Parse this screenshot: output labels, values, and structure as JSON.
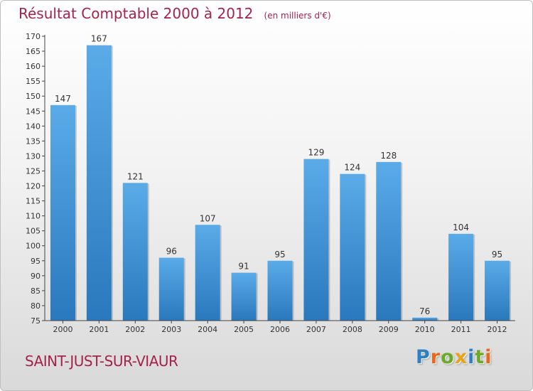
{
  "header": {
    "title": "Résultat Comptable 2000 à 2012",
    "subtitle": "(en milliers d'€)"
  },
  "footer": {
    "commune": "SAINT-JUST-SUR-VIAUR",
    "logo_text": "Proxiti",
    "logo_letters": [
      {
        "char": "P",
        "color": "#2e7fc4"
      },
      {
        "char": "r",
        "color": "#e8681b"
      },
      {
        "char": "o",
        "color": "#6aab2a"
      },
      {
        "char": "x",
        "color": "#e8a31b"
      },
      {
        "char": "i",
        "color": "#2e7fc4"
      },
      {
        "char": "t",
        "color": "#6aab2a"
      },
      {
        "char": "i",
        "color": "#e8681b"
      }
    ]
  },
  "colors": {
    "title": "#a4234b",
    "bar_light": "#5aabe8",
    "bar_dark": "#2a78bd"
  },
  "chart_data": {
    "type": "bar",
    "categories": [
      "2000",
      "2001",
      "2002",
      "2003",
      "2004",
      "2005",
      "2006",
      "2007",
      "2008",
      "2009",
      "2010",
      "2011",
      "2012"
    ],
    "values": [
      147,
      167,
      121,
      96,
      107,
      91,
      95,
      129,
      124,
      128,
      76,
      104,
      95
    ],
    "title": "Résultat Comptable 2000 à 2012",
    "subtitle": "(en milliers d'€)",
    "xlabel": "",
    "ylabel": "",
    "ylim": [
      75,
      170
    ],
    "ytick_step": 5,
    "grid": false,
    "legend": "none"
  }
}
